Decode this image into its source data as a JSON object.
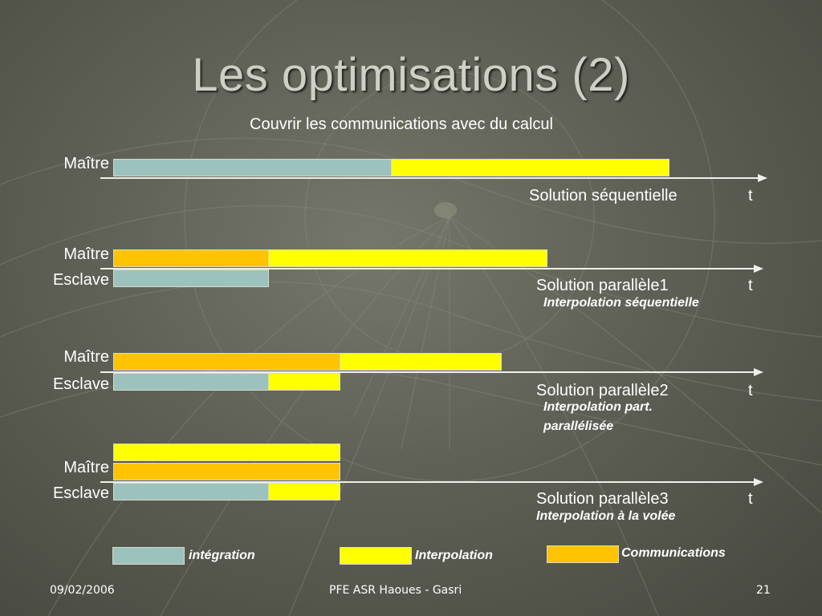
{
  "slide": {
    "title": "Les optimisations (2)",
    "subtitle": "Couvrir les communications avec du calcul"
  },
  "colors": {
    "integration": "#9bc2bc",
    "interpolation": "#ffff00",
    "communications": "#ffc300"
  },
  "rows": {
    "master": "Maître",
    "slave": "Esclave"
  },
  "scenarios": [
    {
      "solution": "Solution séquentielle",
      "time": "t",
      "note": []
    },
    {
      "solution": "Solution parallèle1",
      "time": "t",
      "note": [
        "Interpolation séquentielle"
      ]
    },
    {
      "solution": "Solution parallèle2",
      "time": "t",
      "note": [
        "Interpolation part.",
        "parallélisée"
      ]
    },
    {
      "solution": "Solution parallèle3",
      "time": "t",
      "note": [
        "Interpolation à la volée"
      ]
    }
  ],
  "legend": {
    "integration": "intégration",
    "interpolation": "Interpolation",
    "communications": "Communications"
  },
  "footer": {
    "date": "09/02/2006",
    "center": "PFE ASR Haoues - Gasri",
    "page": "21"
  }
}
